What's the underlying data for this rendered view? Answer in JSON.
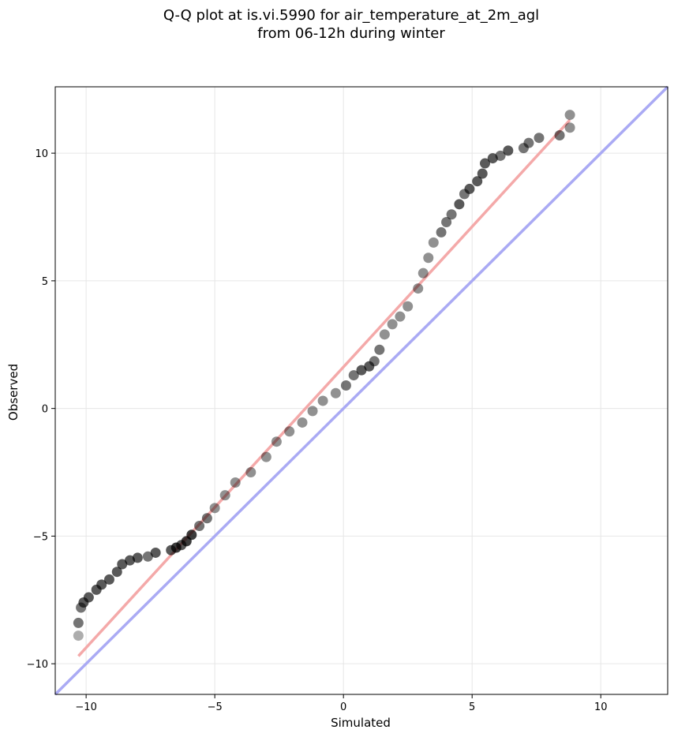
{
  "chart_data": {
    "type": "scatter",
    "title": "Q-Q plot at is.vi.5990 for air_temperature_at_2m_agl",
    "subtitle": "from 06-12h during winter",
    "xlabel": "Simulated",
    "ylabel": "Observed",
    "xlim": [
      -11.2,
      12.6
    ],
    "ylim": [
      -11.2,
      12.6
    ],
    "xticks": [
      -10,
      -5,
      0,
      5,
      10
    ],
    "yticks": [
      -10,
      -5,
      0,
      5,
      10
    ],
    "xtick_labels": [
      "−10",
      "−5",
      "0",
      "5",
      "10"
    ],
    "ytick_labels": [
      "−10",
      "−5",
      "0",
      "5",
      "10"
    ],
    "grid": true,
    "reference_line": {
      "slope": 1,
      "intercept": 0,
      "color": "#aaaaf4"
    },
    "fit_line": {
      "x": [
        -10.3,
        8.8
      ],
      "y": [
        -9.7,
        11.3
      ],
      "color": "#f4a9a9"
    },
    "marker_color": "#000000",
    "quantiles": [
      [
        -10.3,
        -8.9
      ],
      [
        -10.3,
        -8.4
      ],
      [
        -10.2,
        -7.8
      ],
      [
        -10.1,
        -7.6
      ],
      [
        -9.9,
        -7.4
      ],
      [
        -9.6,
        -7.1
      ],
      [
        -9.4,
        -6.9
      ],
      [
        -9.1,
        -6.7
      ],
      [
        -8.8,
        -6.4
      ],
      [
        -8.6,
        -6.1
      ],
      [
        -8.3,
        -5.95
      ],
      [
        -8.0,
        -5.85
      ],
      [
        -7.6,
        -5.8
      ],
      [
        -7.3,
        -5.65
      ],
      [
        -6.7,
        -5.55
      ],
      [
        -6.5,
        -5.45
      ],
      [
        -6.3,
        -5.35
      ],
      [
        -6.1,
        -5.2
      ],
      [
        -5.9,
        -4.95
      ],
      [
        -5.6,
        -4.6
      ],
      [
        -5.3,
        -4.3
      ],
      [
        -5.0,
        -3.9
      ],
      [
        -4.6,
        -3.4
      ],
      [
        -4.2,
        -2.9
      ],
      [
        -3.6,
        -2.5
      ],
      [
        -3.0,
        -1.9
      ],
      [
        -2.6,
        -1.3
      ],
      [
        -2.1,
        -0.9
      ],
      [
        -1.6,
        -0.55
      ],
      [
        -1.2,
        -0.1
      ],
      [
        -0.8,
        0.3
      ],
      [
        -0.3,
        0.6
      ],
      [
        0.1,
        0.9
      ],
      [
        0.4,
        1.3
      ],
      [
        0.7,
        1.5
      ],
      [
        1.0,
        1.65
      ],
      [
        1.2,
        1.85
      ],
      [
        1.4,
        2.3
      ],
      [
        1.6,
        2.9
      ],
      [
        1.9,
        3.3
      ],
      [
        2.2,
        3.6
      ],
      [
        2.5,
        4.0
      ],
      [
        2.9,
        4.7
      ],
      [
        3.1,
        5.3
      ],
      [
        3.3,
        5.9
      ],
      [
        3.5,
        6.5
      ],
      [
        3.8,
        6.9
      ],
      [
        4.0,
        7.3
      ],
      [
        4.2,
        7.6
      ],
      [
        4.5,
        8.0
      ],
      [
        4.7,
        8.4
      ],
      [
        4.9,
        8.6
      ],
      [
        5.2,
        8.9
      ],
      [
        5.4,
        9.2
      ],
      [
        5.5,
        9.6
      ],
      [
        5.8,
        9.8
      ],
      [
        6.1,
        9.9
      ],
      [
        6.4,
        10.1
      ],
      [
        7.0,
        10.2
      ],
      [
        7.2,
        10.4
      ],
      [
        7.6,
        10.6
      ],
      [
        8.4,
        10.7
      ],
      [
        8.8,
        11.0
      ],
      [
        8.8,
        11.5
      ]
    ]
  }
}
